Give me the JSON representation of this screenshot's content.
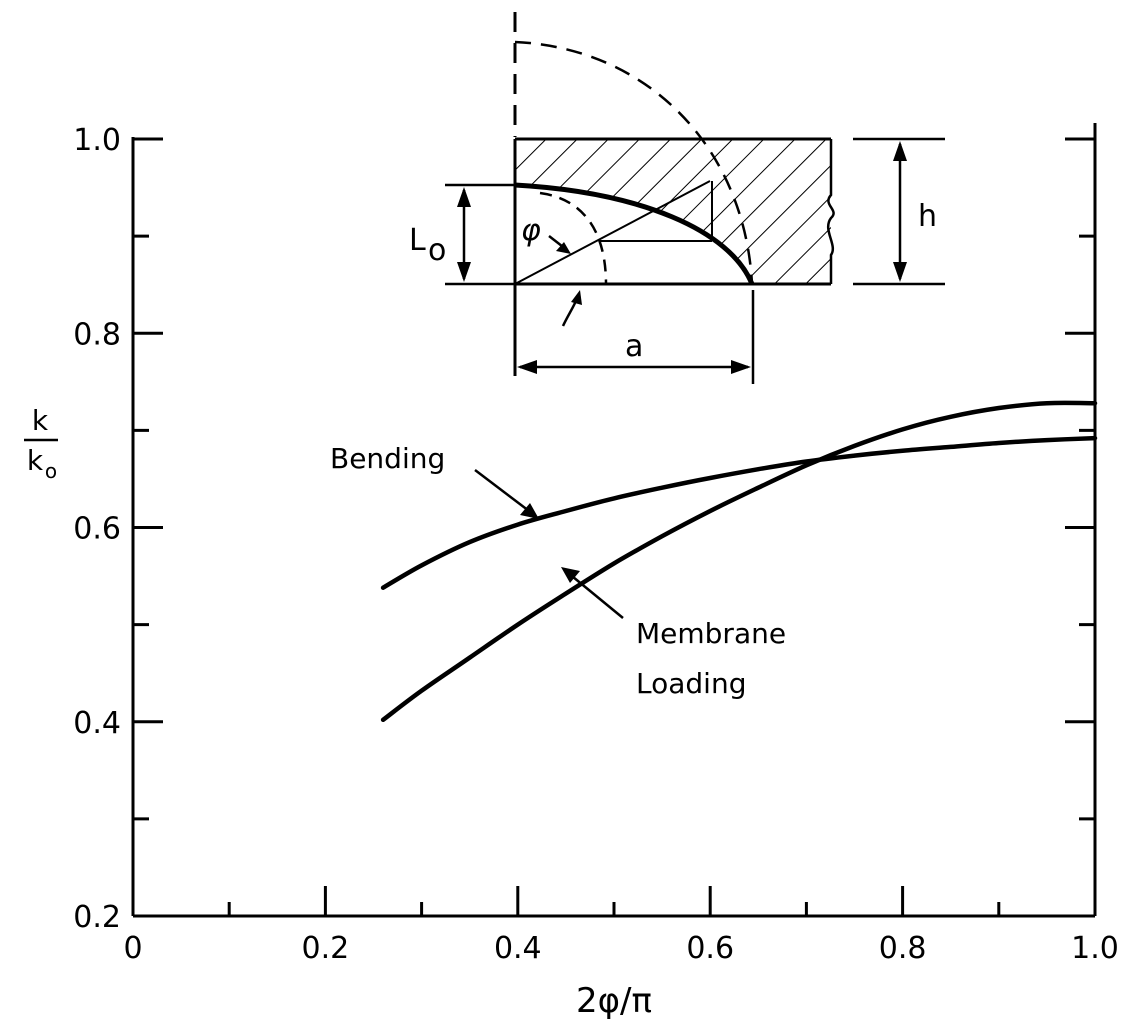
{
  "chart_data": {
    "type": "line",
    "title": "",
    "xlabel": "2φ/π",
    "ylabel": {
      "numerator": "k",
      "denominator": "k",
      "denominator_subscript": "o"
    },
    "xlim": [
      0,
      1.0
    ],
    "ylim": [
      0.2,
      1.0
    ],
    "x_ticks": [
      "0",
      "0.2",
      "0.4",
      "0.6",
      "0.8",
      "1.0"
    ],
    "y_ticks": [
      "0.2",
      "0.4",
      "0.6",
      "0.8",
      "1.0"
    ],
    "grid": false,
    "series": [
      {
        "name": "Bending",
        "x": [
          0.26,
          0.3,
          0.35,
          0.4,
          0.45,
          0.5,
          0.55,
          0.6,
          0.65,
          0.7,
          0.75,
          0.8,
          0.85,
          0.9,
          0.95,
          1.0
        ],
        "y": [
          0.538,
          0.561,
          0.585,
          0.603,
          0.617,
          0.63,
          0.641,
          0.651,
          0.66,
          0.668,
          0.674,
          0.679,
          0.683,
          0.687,
          0.69,
          0.692
        ]
      },
      {
        "name": "Membrane Loading",
        "x": [
          0.26,
          0.3,
          0.35,
          0.4,
          0.45,
          0.5,
          0.55,
          0.6,
          0.65,
          0.7,
          0.75,
          0.8,
          0.85,
          0.9,
          0.95,
          1.0
        ],
        "y": [
          0.402,
          0.432,
          0.466,
          0.5,
          0.532,
          0.563,
          0.591,
          0.617,
          0.641,
          0.664,
          0.684,
          0.701,
          0.714,
          0.723,
          0.728,
          0.728
        ]
      }
    ],
    "annotations": [
      {
        "text": "Bending",
        "lines": [
          "Bending"
        ]
      },
      {
        "text": "Membrane Loading",
        "lines": [
          "Membrane",
          "Loading"
        ]
      }
    ],
    "inset": {
      "labels": {
        "L0_main": "L",
        "L0_sub": "o",
        "phi": "φ",
        "h": "h",
        "a": "a"
      }
    }
  }
}
